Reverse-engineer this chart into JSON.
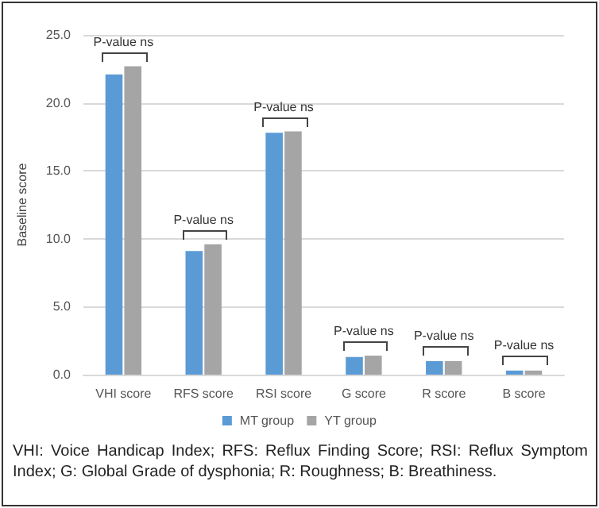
{
  "chart_data": {
    "type": "bar",
    "ylabel": "Baseline score",
    "categories": [
      "VHI score",
      "RFS score",
      "RSI score",
      "G score",
      "R score",
      "B score"
    ],
    "series": [
      {
        "name": "MT group",
        "color": "#5b9bd5",
        "values": [
          22.1,
          9.1,
          17.8,
          1.3,
          1.0,
          0.3
        ]
      },
      {
        "name": "YT group",
        "color": "#a5a5a5",
        "values": [
          22.7,
          9.6,
          17.9,
          1.4,
          1.0,
          0.3
        ]
      }
    ],
    "ylim": [
      0,
      25
    ],
    "yticks": [
      {
        "value": 0,
        "label": "0.0"
      },
      {
        "value": 5,
        "label": "5.0"
      },
      {
        "value": 10,
        "label": "10.0"
      },
      {
        "value": 15,
        "label": "15.0"
      },
      {
        "value": 20,
        "label": "20.0"
      },
      {
        "value": 25,
        "label": "25.0"
      }
    ],
    "grid": "y",
    "legend": "bottom",
    "annotations": [
      {
        "text": "P-value ns",
        "x": "VHI score",
        "y": 22.7
      },
      {
        "text": "P-value ns",
        "x": "RFS score",
        "y": 9.6
      },
      {
        "text": "P-value ns",
        "x": "RSI score",
        "y": 17.9
      },
      {
        "text": "P-value ns",
        "x": "G score",
        "y": 1.4
      },
      {
        "text": "P-value ns",
        "x": "R score",
        "y": 1.0
      },
      {
        "text": "P-value ns",
        "x": "B score",
        "y": 0.3
      },
      "VHI: Voice Handicap Index; RFS: Reflux Finding Score; RSI: Reflux Symptom Index; G: Global Grade of dysphonia; R: Roughness; B: Breathiness."
    ]
  }
}
